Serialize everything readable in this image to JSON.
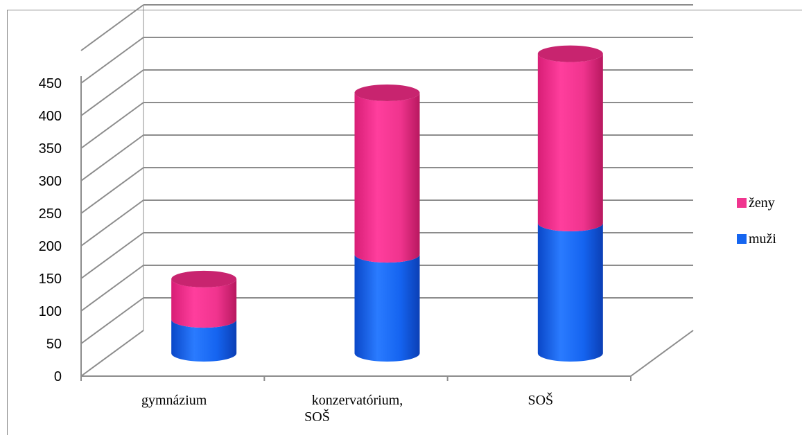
{
  "chart_data": {
    "type": "bar",
    "style": "stacked-3d-cylinder",
    "title": "",
    "xlabel": "",
    "ylabel": "",
    "categories": [
      "gymnázium",
      "konzervatórium, SOŠ",
      "SOŠ"
    ],
    "category_lines": [
      [
        "gymnázium"
      ],
      [
        "konzervatórium,",
        "SOŠ"
      ],
      [
        "SOŠ"
      ]
    ],
    "series": [
      {
        "name": "muži",
        "values": [
          52,
          152,
          200
        ],
        "color": "#1565f0"
      },
      {
        "name": "ženy",
        "values": [
          62,
          248,
          260
        ],
        "color": "#f0358f"
      }
    ],
    "ylim": [
      0,
      450
    ],
    "yticks": [
      "0",
      "50",
      "100",
      "150",
      "200",
      "250",
      "300",
      "350",
      "400",
      "450"
    ],
    "grid": true,
    "legend_position": "right",
    "legend_order": [
      "ženy",
      "muži"
    ]
  }
}
